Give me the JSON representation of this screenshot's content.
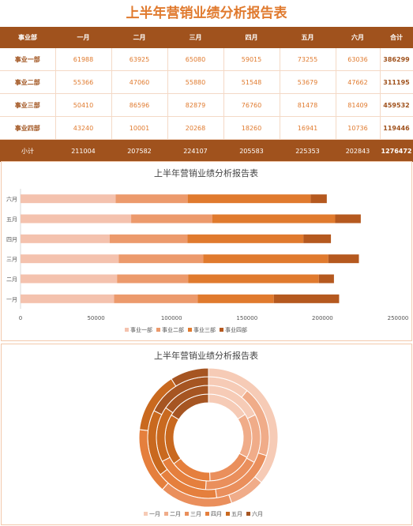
{
  "title": "上半年营销业绩分析报告表",
  "table": {
    "header": [
      "事业部",
      "一月",
      "二月",
      "三月",
      "四月",
      "五月",
      "六月",
      "合计"
    ],
    "rows": [
      {
        "name": "事业一部",
        "values": [
          "61988",
          "63925",
          "65080",
          "59015",
          "73255",
          "63036"
        ],
        "total": "386299"
      },
      {
        "name": "事业二部",
        "values": [
          "55366",
          "47060",
          "55880",
          "51548",
          "53679",
          "47662"
        ],
        "total": "311195"
      },
      {
        "name": "事业三部",
        "values": [
          "50410",
          "86596",
          "82879",
          "76760",
          "81478",
          "81409"
        ],
        "total": "459532"
      },
      {
        "name": "事业四部",
        "values": [
          "43240",
          "10001",
          "20268",
          "18260",
          "16941",
          "10736"
        ],
        "total": "119446"
      }
    ],
    "footer": {
      "name": "小计",
      "values": [
        "211004",
        "207582",
        "224107",
        "205583",
        "225353",
        "202843"
      ],
      "total": "1276472"
    }
  },
  "chart_data": [
    {
      "type": "bar",
      "orientation": "horizontal",
      "stacked": true,
      "title": "上半年营销业绩分析报告表",
      "categories": [
        "一月",
        "二月",
        "三月",
        "四月",
        "五月",
        "六月"
      ],
      "series": [
        {
          "name": "事业一部",
          "values": [
            61988,
            63925,
            65080,
            59015,
            73255,
            63036
          ]
        },
        {
          "name": "事业二部",
          "values": [
            55366,
            47060,
            55880,
            51548,
            53679,
            47662
          ]
        },
        {
          "name": "事业三部",
          "values": [
            50410,
            86596,
            82879,
            76760,
            81478,
            81409
          ]
        },
        {
          "name": "事业四部",
          "values": [
            43240,
            10001,
            20268,
            18260,
            16941,
            10736
          ]
        }
      ],
      "xlim": [
        0,
        250000
      ],
      "xticks": [
        "0",
        "50000",
        "100000",
        "150000",
        "200000",
        "250000"
      ],
      "legend": "bottom"
    },
    {
      "type": "pie",
      "variant": "doughnut",
      "title": "上半年营销业绩分析报告表",
      "categories": [
        "一月",
        "二月",
        "三月",
        "四月",
        "五月",
        "六月"
      ],
      "rings": [
        {
          "name": "事业一部",
          "values": [
            61988,
            63925,
            65080,
            59015,
            73255,
            63036
          ]
        },
        {
          "name": "事业二部",
          "values": [
            55366,
            47060,
            55880,
            51548,
            53679,
            47662
          ]
        },
        {
          "name": "事业三部",
          "values": [
            50410,
            86596,
            82879,
            76760,
            81478,
            81409
          ]
        },
        {
          "name": "事业四部",
          "values": [
            43240,
            10001,
            20268,
            18260,
            16941,
            10736
          ]
        }
      ],
      "legend": "bottom"
    }
  ],
  "colors": {
    "dept": [
      "#F4C2AE",
      "#EC9A6C",
      "#E07A2E",
      "#B5591F"
    ],
    "month": [
      "#F6CBB6",
      "#F0AC89",
      "#EA8F5C",
      "#E57F3D",
      "#C9691F",
      "#A65522"
    ],
    "header": "#A0521D",
    "accent": "#E07A2E"
  }
}
